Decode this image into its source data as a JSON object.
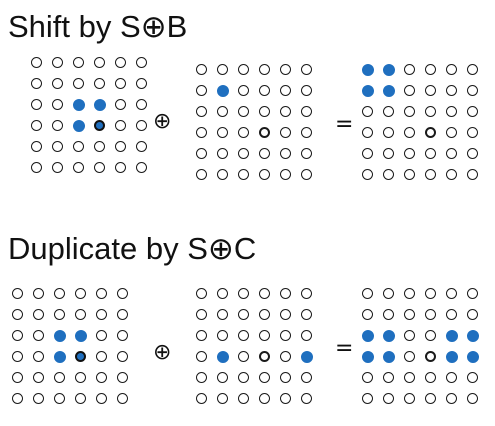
{
  "sections": [
    {
      "title": "Shift by S⊕B",
      "operator": "⊕",
      "equals": "=",
      "grids": [
        {
          "filled": [
            [
              2,
              2
            ],
            [
              2,
              3
            ],
            [
              3,
              2
            ],
            [
              3,
              3
            ]
          ],
          "origin": [
            3,
            3
          ]
        },
        {
          "filled": [
            [
              1,
              1
            ]
          ],
          "origin": [
            3,
            3
          ]
        },
        {
          "filled": [
            [
              0,
              0
            ],
            [
              0,
              1
            ],
            [
              1,
              0
            ],
            [
              1,
              1
            ]
          ],
          "origin": [
            3,
            3
          ]
        }
      ]
    },
    {
      "title": "Duplicate by S⊕C",
      "operator": "⊕",
      "equals": "=",
      "grids": [
        {
          "filled": [
            [
              2,
              2
            ],
            [
              2,
              3
            ],
            [
              3,
              2
            ],
            [
              3,
              3
            ]
          ],
          "origin": [
            3,
            3
          ]
        },
        {
          "filled": [
            [
              3,
              1
            ],
            [
              3,
              5
            ]
          ],
          "origin": [
            3,
            3
          ]
        },
        {
          "filled": [
            [
              2,
              0
            ],
            [
              2,
              1
            ],
            [
              2,
              4
            ],
            [
              2,
              5
            ],
            [
              3,
              0
            ],
            [
              3,
              1
            ],
            [
              3,
              4
            ],
            [
              3,
              5
            ]
          ],
          "origin": [
            3,
            3
          ]
        }
      ]
    }
  ],
  "colors": {
    "filled": "#1f6fbf",
    "outline": "#1a1a1a"
  }
}
